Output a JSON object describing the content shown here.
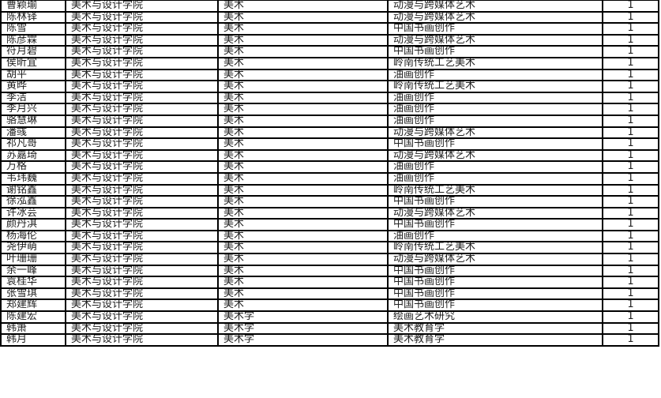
{
  "rows": [
    [
      "曹颖瑜",
      "美术与设计学院",
      "美术",
      "动漫与跨媒体艺术",
      "1"
    ],
    [
      "陈林铎",
      "美术与设计学院",
      "美术",
      "动漫与跨媒体艺术",
      "1"
    ],
    [
      "陈雪",
      "美术与设计学院",
      "美术",
      "中国书画创作",
      "1"
    ],
    [
      "陈彦霖",
      "美术与设计学院",
      "美术",
      "动漫与跨媒体艺术",
      "1"
    ],
    [
      "符月碧",
      "美术与设计学院",
      "美术",
      "中国书画创作",
      "1"
    ],
    [
      "侯昕宜",
      "美术与设计学院",
      "美术",
      "岭南传统工艺美术",
      "1"
    ],
    [
      "胡平",
      "美术与设计学院",
      "美术",
      "油画创作",
      "1"
    ],
    [
      "黄晔",
      "美术与设计学院",
      "美术",
      "岭南传统工艺美术",
      "1"
    ],
    [
      "李洁",
      "美术与设计学院",
      "美术",
      "油画创作",
      "1"
    ],
    [
      "李月兴",
      "美术与设计学院",
      "美术",
      "油画创作",
      "1"
    ],
    [
      "骆慧琳",
      "美术与设计学院",
      "美术",
      "油画创作",
      "1"
    ],
    [
      "潘彧",
      "美术与设计学院",
      "美术",
      "动漫与跨媒体艺术",
      "1"
    ],
    [
      "祁凡哥",
      "美术与设计学院",
      "美术",
      "中国书画创作",
      "1"
    ],
    [
      "苏嘉琦",
      "美术与设计学院",
      "美术",
      "动漫与跨媒体艺术",
      "1"
    ],
    [
      "万格",
      "美术与设计学院",
      "美术",
      "油画创作",
      "1"
    ],
    [
      "韦玮巍",
      "美术与设计学院",
      "美术",
      "油画创作",
      "1"
    ],
    [
      "谢铭鑫",
      "美术与设计学院",
      "美术",
      "岭南传统工艺美术",
      "1"
    ],
    [
      "徐泓鑫",
      "美术与设计学院",
      "美术",
      "中国书画创作",
      "1"
    ],
    [
      "许冰芸",
      "美术与设计学院",
      "美术",
      "动漫与跨媒体艺术",
      "1"
    ],
    [
      "颜丹淇",
      "美术与设计学院",
      "美术",
      "中国书画创作",
      "1"
    ],
    [
      "杨海伦",
      "美术与设计学院",
      "美术",
      "油画创作",
      "1"
    ],
    [
      "尧伊萌",
      "美术与设计学院",
      "美术",
      "岭南传统工艺美术",
      "1"
    ],
    [
      "叶珊珊",
      "美术与设计学院",
      "美术",
      "动漫与跨媒体艺术",
      "1"
    ],
    [
      "余一峰",
      "美术与设计学院",
      "美术",
      "中国书画创作",
      "1"
    ],
    [
      "袁桂华",
      "美术与设计学院",
      "美术",
      "中国书画创作",
      "1"
    ],
    [
      "张雪琪",
      "美术与设计学院",
      "美术",
      "中国书画创作",
      "1"
    ],
    [
      "郑建辉",
      "美术与设计学院",
      "美术",
      "中国书画创作",
      "1"
    ],
    [
      "陈建宏",
      "美术与设计学院",
      "美术学",
      "绘画艺术研究",
      "1"
    ],
    [
      "韩箫",
      "美术与设计学院",
      "美术学",
      "美术教育学",
      "1"
    ],
    [
      "韩月",
      "美术与设计学院",
      "美术学",
      "美术教育学",
      "1"
    ]
  ]
}
